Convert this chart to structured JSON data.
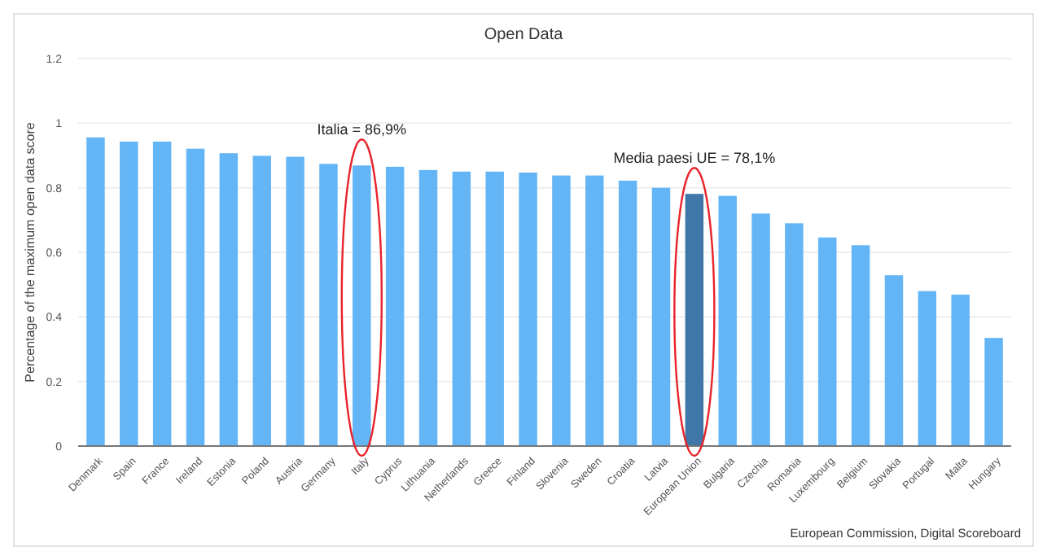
{
  "chart_data": {
    "type": "bar",
    "title": "Open Data",
    "ylabel": "Percentage of the maximum open data score",
    "categories": [
      "Denmark",
      "Spain",
      "France",
      "Ireland",
      "Estonia",
      "Poland",
      "Austria",
      "Germany",
      "Italy",
      "Cyprus",
      "Lithuania",
      "Netherlands",
      "Greece",
      "Finland",
      "Slovenia",
      "Sweden",
      "Croatia",
      "Latvia",
      "European Union",
      "Bulgaria",
      "Czechia",
      "Romania",
      "Luxembourg",
      "Belgium",
      "Slovakia",
      "Portugal",
      "Malta",
      "Hungary"
    ],
    "values": [
      0.956,
      0.943,
      0.943,
      0.921,
      0.907,
      0.899,
      0.896,
      0.874,
      0.869,
      0.865,
      0.855,
      0.85,
      0.85,
      0.847,
      0.838,
      0.838,
      0.822,
      0.8,
      0.781,
      0.775,
      0.72,
      0.69,
      0.646,
      0.622,
      0.529,
      0.48,
      0.469,
      0.335
    ],
    "colors": [
      "#64b5f6",
      "#64b5f6",
      "#64b5f6",
      "#64b5f6",
      "#64b5f6",
      "#64b5f6",
      "#64b5f6",
      "#64b5f6",
      "#64b5f6",
      "#64b5f6",
      "#64b5f6",
      "#64b5f6",
      "#64b5f6",
      "#64b5f6",
      "#64b5f6",
      "#64b5f6",
      "#64b5f6",
      "#64b5f6",
      "#3f78a8",
      "#64b5f6",
      "#64b5f6",
      "#64b5f6",
      "#64b5f6",
      "#64b5f6",
      "#64b5f6",
      "#64b5f6",
      "#64b5f6",
      "#64b5f6"
    ],
    "ylim": [
      0,
      1.2
    ],
    "yticks": [
      0,
      0.2,
      0.4,
      0.6,
      0.8,
      1,
      1.2
    ],
    "grid": "y",
    "annotations": [
      {
        "text": "Italia = 86,9%",
        "x": "Italy",
        "y": 0.869
      },
      {
        "text": "Media paesi UE = 78,1%",
        "x": "European Union",
        "y": 0.781
      },
      "European Commission, Digital Scoreboard"
    ]
  }
}
